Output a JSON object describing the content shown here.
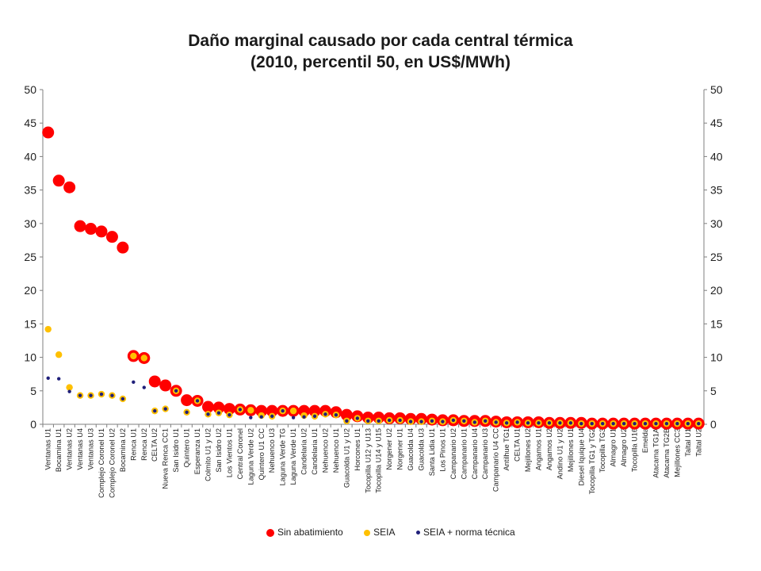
{
  "title_lines": [
    "Daño marginal causado por cada central térmica",
    "(2010, percentil 50, en US$/MWh)"
  ],
  "colors": {
    "sin": "#ff0000",
    "seia": "#ffc000",
    "norma": "#1f1f7a",
    "axis": "#7f7f7f",
    "grid": "#d9d9d9"
  },
  "chart_data": {
    "type": "scatter",
    "title": "Daño marginal causado por cada central térmica (2010, percentil 50, en US$/MWh)",
    "ylim": [
      0,
      50
    ],
    "yticks": [
      0,
      5,
      10,
      15,
      20,
      25,
      30,
      35,
      40,
      45,
      50
    ],
    "secondary_axis_ticks": [
      0,
      5,
      10,
      15,
      20,
      25,
      30,
      35,
      40,
      45,
      50
    ],
    "grid": false,
    "legend_position": "bottom",
    "categories": [
      "Ventanas U1",
      "Bocamina U1",
      "Ventanas U2",
      "Ventanas U4",
      "Ventanas U3",
      "Complejo Coronel U1",
      "Complejo Coronel U2",
      "Bocamina U2",
      "Renca U1",
      "Renca U2",
      "CELTA U2",
      "Nueva Renca CC1",
      "San Isidro U1",
      "Quintero U1",
      "Esperanza U1",
      "Colmito U1 y U2",
      "San Isidro U2",
      "Los Vientos U1",
      "Central Coronel",
      "Laguna Verde U2",
      "Quintero U1 CC",
      "Nehuenco U3",
      "Laguna Verde TG",
      "Laguna Verde U1",
      "Candelaria U2",
      "Candelaria U1",
      "Nehuenco U2",
      "Nehuenco U1",
      "Guacolda U1 y U2",
      "Horcones U1",
      "Tocopilla U12 y U13",
      "Tocopilla U14 y U15",
      "Norgener U2",
      "Norgener U1",
      "Guacolda U4",
      "Guacolda U3",
      "Santa Lidia U1",
      "Los Pinos U1",
      "Campanario U2",
      "Campanario U1",
      "Campanario U4",
      "Campanario U3",
      "Campanario U4 CC",
      "Antilhue TG1",
      "CELTA U1",
      "Mejillones U2",
      "Angamos U1",
      "Angamos U2",
      "Andino U1 y U2",
      "Mejillones U1",
      "Diesel Iquique U4",
      "Tocopilla TG1 y TG2",
      "Tocopilla TG3",
      "Almagro U1",
      "Almagro U2",
      "Tocopilla U16",
      "Emelda",
      "Atacama TG1A",
      "Atacama TG2B",
      "Mejillones CC3",
      "Taltal U1",
      "Taltal U2"
    ],
    "series": [
      {
        "name": "Sin abatimiento",
        "values": [
          43.6,
          36.4,
          35.4,
          29.6,
          29.2,
          28.8,
          28.0,
          26.4,
          10.2,
          9.9,
          6.4,
          5.8,
          5.0,
          3.6,
          3.5,
          2.6,
          2.5,
          2.3,
          2.2,
          2.1,
          2.0,
          2.0,
          2.0,
          2.0,
          2.0,
          2.0,
          2.0,
          1.8,
          1.4,
          1.2,
          1.0,
          1.0,
          0.9,
          0.9,
          0.8,
          0.8,
          0.7,
          0.6,
          0.6,
          0.5,
          0.5,
          0.5,
          0.4,
          0.3,
          0.3,
          0.3,
          0.3,
          0.2,
          0.2,
          0.2,
          0.2,
          0.1,
          0.1,
          0.1,
          0.1,
          0.1,
          0.1,
          0.1,
          0.1,
          0.1,
          0.1,
          0.1
        ]
      },
      {
        "name": "SEIA",
        "values": [
          14.2,
          10.4,
          5.5,
          4.3,
          4.3,
          4.5,
          4.3,
          3.8,
          10.2,
          9.9,
          2.0,
          2.3,
          5.0,
          1.8,
          3.5,
          1.5,
          1.7,
          1.4,
          2.2,
          2.1,
          1.3,
          1.2,
          2.0,
          2.0,
          1.3,
          1.2,
          1.5,
          1.4,
          0.5,
          0.9,
          0.5,
          0.5,
          0.6,
          0.6,
          0.4,
          0.4,
          0.5,
          0.4,
          0.6,
          0.5,
          0.3,
          0.5,
          0.3,
          0.2,
          0.3,
          0.2,
          0.2,
          0.2,
          0.2,
          0.2,
          0.1,
          0.1,
          0.1,
          0.1,
          0.1,
          0.1,
          0.1,
          0.1,
          0.1,
          0.1,
          0.1,
          0.1
        ]
      },
      {
        "name": "SEIA + norma técnica",
        "values": [
          6.9,
          6.8,
          4.9,
          4.3,
          4.3,
          4.5,
          4.3,
          3.8,
          6.3,
          5.5,
          2.0,
          2.3,
          5.0,
          1.8,
          3.5,
          1.5,
          1.7,
          1.4,
          2.2,
          1.0,
          1.1,
          1.2,
          2.0,
          1.0,
          1.1,
          1.2,
          1.5,
          1.4,
          0.5,
          0.9,
          0.5,
          0.5,
          0.6,
          0.6,
          0.4,
          0.4,
          0.5,
          0.4,
          0.6,
          0.5,
          0.3,
          0.5,
          0.3,
          0.2,
          0.3,
          0.2,
          0.2,
          0.2,
          0.2,
          0.2,
          0.1,
          0.1,
          0.1,
          0.1,
          0.1,
          0.1,
          0.1,
          0.1,
          0.1,
          0.1,
          0.1,
          0.1
        ]
      }
    ]
  }
}
